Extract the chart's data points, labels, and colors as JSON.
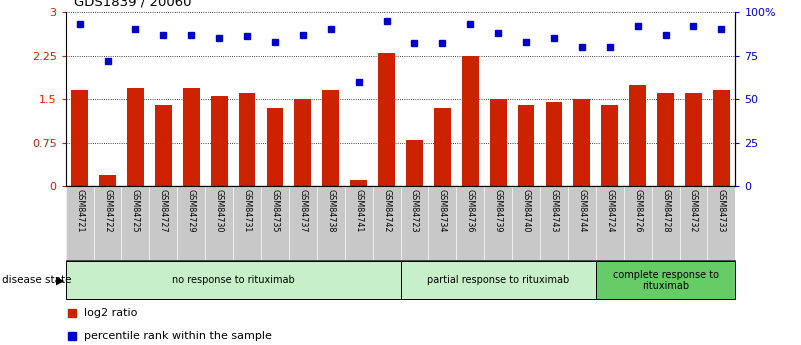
{
  "title": "GDS1839 / 20060",
  "samples": [
    "GSM84721",
    "GSM84722",
    "GSM84725",
    "GSM84727",
    "GSM84729",
    "GSM84730",
    "GSM84731",
    "GSM84735",
    "GSM84737",
    "GSM84738",
    "GSM84741",
    "GSM84742",
    "GSM84723",
    "GSM84734",
    "GSM84736",
    "GSM84739",
    "GSM84740",
    "GSM84743",
    "GSM84744",
    "GSM84724",
    "GSM84726",
    "GSM84728",
    "GSM84732",
    "GSM84733"
  ],
  "log2_ratio": [
    1.65,
    0.2,
    1.7,
    1.4,
    1.7,
    1.55,
    1.6,
    1.35,
    1.5,
    1.65,
    0.1,
    2.3,
    0.8,
    1.35,
    2.25,
    1.5,
    1.4,
    1.45,
    1.5,
    1.4,
    1.75,
    1.6,
    1.6,
    1.65
  ],
  "percentile_rank": [
    93,
    72,
    90,
    87,
    87,
    85,
    86,
    83,
    87,
    90,
    60,
    95,
    82,
    82,
    93,
    88,
    83,
    85,
    80,
    80,
    92,
    87,
    92,
    90
  ],
  "group_ranges": [
    [
      0,
      11
    ],
    [
      12,
      18
    ],
    [
      19,
      23
    ]
  ],
  "group_labels": [
    "no response to rituximab",
    "partial response to rituximab",
    "complete response to\nrituximab"
  ],
  "group_colors": [
    "#c8f0c8",
    "#c8f0c8",
    "#66cc66"
  ],
  "bar_color": "#cc2200",
  "dot_color": "#0000cc",
  "ylim_left": [
    0,
    3
  ],
  "ylim_right": [
    0,
    100
  ],
  "yticks_left": [
    0,
    0.75,
    1.5,
    2.25,
    3.0
  ],
  "ytick_labels_left": [
    "0",
    "0.75",
    "1.5",
    "2.25",
    "3"
  ],
  "yticks_right": [
    0,
    25,
    50,
    75,
    100
  ],
  "ytick_labels_right": [
    "0",
    "25",
    "50",
    "75",
    "100%"
  ],
  "legend_labels": [
    "log2 ratio",
    "percentile rank within the sample"
  ],
  "legend_colors": [
    "#cc2200",
    "#0000cc"
  ],
  "bar_width": 0.6,
  "background_color": "#ffffff",
  "tick_label_color_left": "#cc2200",
  "tick_label_color_right": "#0000cc",
  "disease_state_label": "disease state",
  "sample_bg_color": "#c8c8c8",
  "plot_bg": "#ffffff"
}
